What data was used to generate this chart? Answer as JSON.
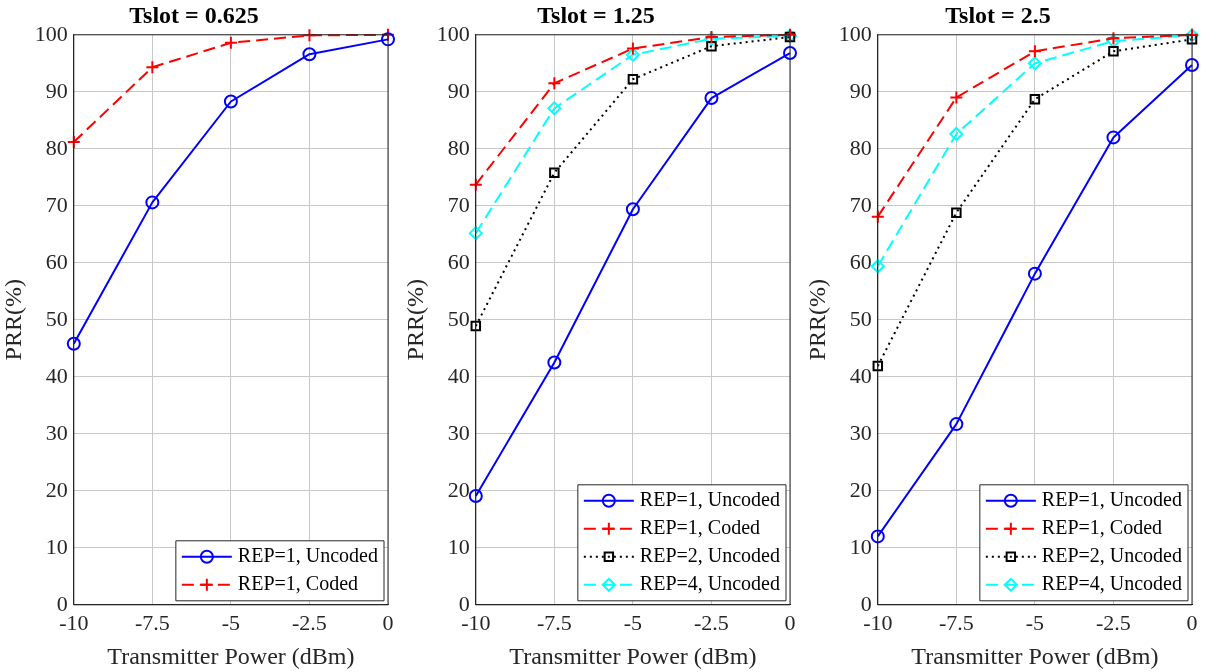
{
  "chart_data": [
    {
      "type": "line",
      "title": "Tslot = 0.625",
      "xlabel": "Transmitter Power (dBm)",
      "ylabel": "PRR(%)",
      "x": [
        -10,
        -7.5,
        -5,
        -2.5,
        0
      ],
      "xlim": [
        -10,
        0
      ],
      "xticks": [
        -10,
        -7.5,
        -5,
        -2.5,
        0
      ],
      "ylim": [
        0,
        100
      ],
      "yticks": [
        0,
        10,
        20,
        30,
        40,
        50,
        60,
        70,
        80,
        90,
        100
      ],
      "grid": true,
      "legend": "bottom right",
      "series": [
        {
          "name": "REP=1, Uncoded",
          "color": "#0000ff",
          "marker": "circle",
          "line_style": "solid",
          "values": [
            45.8,
            70.6,
            88.3,
            96.6,
            99.2
          ]
        },
        {
          "name": "REP=1, Coded",
          "color": "#ff0000",
          "marker": "cross",
          "line_style": "dashed",
          "values": [
            81.2,
            94.3,
            98.6,
            99.9,
            100
          ]
        }
      ]
    },
    {
      "type": "line",
      "title": "Tslot = 1.25",
      "xlabel": "Transmitter Power (dBm)",
      "ylabel": "PRR(%)",
      "x": [
        -10,
        -7.5,
        -5,
        -2.5,
        0
      ],
      "xlim": [
        -10,
        0
      ],
      "xticks": [
        -10,
        -7.5,
        -5,
        -2.5,
        0
      ],
      "ylim": [
        0,
        100
      ],
      "yticks": [
        0,
        10,
        20,
        30,
        40,
        50,
        60,
        70,
        80,
        90,
        100
      ],
      "grid": true,
      "legend": "bottom right",
      "series": [
        {
          "name": "REP=1, Uncoded",
          "color": "#0000ff",
          "marker": "circle",
          "line_style": "solid",
          "values": [
            19.1,
            42.5,
            69.4,
            88.9,
            96.8
          ]
        },
        {
          "name": "REP=1, Coded",
          "color": "#ff0000",
          "marker": "cross",
          "line_style": "dashed",
          "values": [
            73.7,
            91.5,
            97.6,
            99.6,
            100
          ]
        },
        {
          "name": "REP=2, Uncoded",
          "color": "#000000",
          "marker": "square",
          "line_style": "dotted",
          "values": [
            48.9,
            75.8,
            92.2,
            98.0,
            99.6
          ]
        },
        {
          "name": "REP=4, Uncoded",
          "color": "#00ffff",
          "marker": "diamond",
          "line_style": "dashed",
          "values": [
            65.2,
            87.1,
            96.5,
            99.3,
            99.8
          ]
        }
      ]
    },
    {
      "type": "line",
      "title": "Tslot = 2.5",
      "xlabel": "Transmitter Power (dBm)",
      "ylabel": "PRR(%)",
      "x": [
        -10,
        -7.5,
        -5,
        -2.5,
        0
      ],
      "xlim": [
        -10,
        0
      ],
      "xticks": [
        -10,
        -7.5,
        -5,
        -2.5,
        0
      ],
      "ylim": [
        0,
        100
      ],
      "yticks": [
        0,
        10,
        20,
        30,
        40,
        50,
        60,
        70,
        80,
        90,
        100
      ],
      "grid": true,
      "legend": "bottom right",
      "series": [
        {
          "name": "REP=1, Uncoded",
          "color": "#0000ff",
          "marker": "circle",
          "line_style": "solid",
          "values": [
            12.0,
            31.7,
            58.1,
            82.0,
            94.7
          ]
        },
        {
          "name": "REP=1, Coded",
          "color": "#ff0000",
          "marker": "cross",
          "line_style": "dashed",
          "values": [
            68.1,
            89.0,
            97.1,
            99.4,
            100
          ]
        },
        {
          "name": "REP=2, Uncoded",
          "color": "#000000",
          "marker": "square",
          "line_style": "dotted",
          "values": [
            41.9,
            68.8,
            88.7,
            97.1,
            99.2
          ]
        },
        {
          "name": "REP=4, Uncoded",
          "color": "#00ffff",
          "marker": "diamond",
          "line_style": "dashed",
          "values": [
            59.4,
            82.6,
            95.0,
            98.9,
            99.9
          ]
        }
      ]
    }
  ]
}
